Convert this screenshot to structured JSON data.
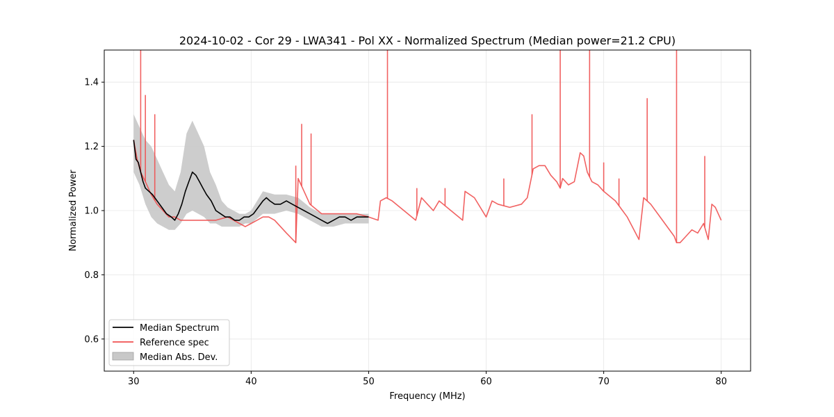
{
  "chart_data": {
    "type": "line",
    "title": "2024-10-02 - Cor 29 - LWA341 - Pol XX - Normalized Spectrum (Median power=21.2 CPU)",
    "xlabel": "Frequency (MHz)",
    "ylabel": "Normalized Power",
    "xlim": [
      27.5,
      82.5
    ],
    "ylim": [
      0.5,
      1.5
    ],
    "xticks": [
      30,
      40,
      50,
      60,
      70,
      80
    ],
    "xtick_labels": [
      "30",
      "40",
      "50",
      "60",
      "70",
      "80"
    ],
    "yticks": [
      0.6,
      0.8,
      1.0,
      1.2,
      1.4
    ],
    "ytick_labels": [
      "0.6",
      "0.8",
      "1.0",
      "1.2",
      "1.4"
    ],
    "grid": true,
    "legend_position": "lower-left",
    "series": [
      {
        "name": "Median Spectrum",
        "color": "#000000",
        "x": [
          30.0,
          30.2,
          30.4,
          30.6,
          30.8,
          31.0,
          31.3,
          31.6,
          32.0,
          32.4,
          32.8,
          33.2,
          33.5,
          33.8,
          34.1,
          34.4,
          34.7,
          35.0,
          35.3,
          35.6,
          35.9,
          36.2,
          36.6,
          37.0,
          37.4,
          37.8,
          38.2,
          38.6,
          39.0,
          39.4,
          39.8,
          40.2,
          40.6,
          41.0,
          41.3,
          41.6,
          42.0,
          42.5,
          43.0,
          43.5,
          44.0,
          44.5,
          45.0,
          45.5,
          46.0,
          46.5,
          47.0,
          47.5,
          48.0,
          48.5,
          49.0,
          49.5,
          50.0
        ],
        "values": [
          1.22,
          1.16,
          1.15,
          1.12,
          1.09,
          1.07,
          1.06,
          1.05,
          1.03,
          1.01,
          0.99,
          0.98,
          0.97,
          0.99,
          1.02,
          1.06,
          1.09,
          1.12,
          1.11,
          1.09,
          1.07,
          1.05,
          1.03,
          1.0,
          0.99,
          0.98,
          0.98,
          0.97,
          0.97,
          0.98,
          0.98,
          0.99,
          1.01,
          1.03,
          1.04,
          1.03,
          1.02,
          1.02,
          1.03,
          1.02,
          1.01,
          1.0,
          0.99,
          0.98,
          0.97,
          0.96,
          0.97,
          0.98,
          0.98,
          0.97,
          0.98,
          0.98,
          0.98
        ]
      },
      {
        "name": "Reference spec",
        "color": "#f05050",
        "x": [
          30.0,
          30.3,
          30.6,
          31.0,
          31.5,
          32.0,
          32.5,
          33.0,
          33.5,
          34.0,
          35.0,
          36.0,
          37.0,
          38.0,
          39.0,
          39.5,
          40.0,
          40.5,
          41.0,
          41.5,
          42.0,
          43.0,
          43.8,
          44.0,
          44.5,
          45.0,
          46.0,
          47.0,
          48.0,
          49.0,
          50.0,
          50.8,
          51.0,
          51.5,
          52.0,
          53.0,
          54.0,
          54.5,
          55.0,
          55.5,
          56.0,
          57.0,
          58.0,
          58.2,
          59.0,
          60.0,
          60.5,
          61.0,
          62.0,
          63.0,
          63.5,
          64.0,
          64.5,
          65.0,
          65.5,
          66.0,
          66.3,
          66.5,
          67.0,
          67.5,
          68.0,
          68.3,
          68.6,
          69.0,
          69.5,
          70.0,
          71.0,
          72.0,
          73.0,
          73.4,
          73.7,
          74.0,
          75.0,
          76.0,
          76.2,
          76.5,
          77.0,
          77.5,
          78.0,
          78.5,
          78.9,
          79.2,
          79.5,
          80.0
        ],
        "values": [
          1.22,
          1.16,
          1.12,
          1.09,
          1.05,
          1.02,
          1.0,
          0.98,
          0.98,
          0.97,
          0.97,
          0.97,
          0.97,
          0.98,
          0.96,
          0.95,
          0.96,
          0.97,
          0.98,
          0.98,
          0.97,
          0.93,
          0.9,
          1.1,
          1.06,
          1.02,
          0.99,
          0.99,
          0.99,
          0.99,
          0.98,
          0.97,
          1.03,
          1.04,
          1.03,
          1.0,
          0.97,
          1.04,
          1.02,
          1.0,
          1.03,
          1.0,
          0.97,
          1.06,
          1.04,
          0.98,
          1.03,
          1.02,
          1.01,
          1.02,
          1.04,
          1.13,
          1.14,
          1.14,
          1.11,
          1.09,
          1.07,
          1.1,
          1.08,
          1.09,
          1.18,
          1.17,
          1.12,
          1.09,
          1.08,
          1.06,
          1.03,
          0.98,
          0.91,
          1.04,
          1.03,
          1.02,
          0.97,
          0.92,
          0.9,
          0.9,
          0.92,
          0.94,
          0.93,
          0.96,
          0.91,
          1.02,
          1.01,
          0.97
        ],
        "spikes": [
          {
            "x": 30.6,
            "value": 1.5
          },
          {
            "x": 31.0,
            "value": 1.36
          },
          {
            "x": 31.8,
            "value": 1.3
          },
          {
            "x": 43.8,
            "value": 1.14
          },
          {
            "x": 44.3,
            "value": 1.27
          },
          {
            "x": 45.1,
            "value": 1.24
          },
          {
            "x": 51.6,
            "value": 1.5
          },
          {
            "x": 54.1,
            "value": 1.07
          },
          {
            "x": 56.5,
            "value": 1.07
          },
          {
            "x": 61.5,
            "value": 1.1
          },
          {
            "x": 63.9,
            "value": 1.3
          },
          {
            "x": 66.3,
            "value": 1.5
          },
          {
            "x": 68.8,
            "value": 1.5
          },
          {
            "x": 70.0,
            "value": 1.15
          },
          {
            "x": 71.3,
            "value": 1.1
          },
          {
            "x": 73.7,
            "value": 1.35
          },
          {
            "x": 76.2,
            "value": 1.5
          },
          {
            "x": 78.6,
            "value": 1.17
          }
        ]
      }
    ],
    "median_abs_dev": {
      "name": "Median Abs. Dev.",
      "color": "#c8c8c8",
      "x": [
        30.0,
        30.5,
        31.0,
        31.5,
        32.0,
        32.5,
        33.0,
        33.5,
        34.0,
        34.5,
        35.0,
        35.5,
        36.0,
        36.5,
        37.0,
        37.5,
        38.0,
        38.5,
        39.0,
        39.5,
        40.0,
        41.0,
        42.0,
        43.0,
        44.0,
        45.0,
        46.0,
        47.0,
        48.0,
        49.0,
        50.0
      ],
      "upper": [
        1.3,
        1.26,
        1.22,
        1.2,
        1.16,
        1.12,
        1.08,
        1.06,
        1.12,
        1.24,
        1.28,
        1.24,
        1.2,
        1.12,
        1.08,
        1.03,
        1.01,
        1.0,
        0.99,
        0.99,
        1.0,
        1.06,
        1.05,
        1.05,
        1.04,
        1.01,
        0.99,
        0.99,
        0.99,
        0.99,
        0.99
      ],
      "lower": [
        1.12,
        1.08,
        1.02,
        0.98,
        0.96,
        0.95,
        0.94,
        0.94,
        0.96,
        0.99,
        1.0,
        0.99,
        0.98,
        0.96,
        0.96,
        0.95,
        0.95,
        0.95,
        0.95,
        0.96,
        0.96,
        0.99,
        0.99,
        1.0,
        0.99,
        0.97,
        0.95,
        0.95,
        0.96,
        0.96,
        0.96
      ]
    },
    "legend": [
      "Median Spectrum",
      "Reference spec",
      "Median Abs. Dev."
    ]
  }
}
